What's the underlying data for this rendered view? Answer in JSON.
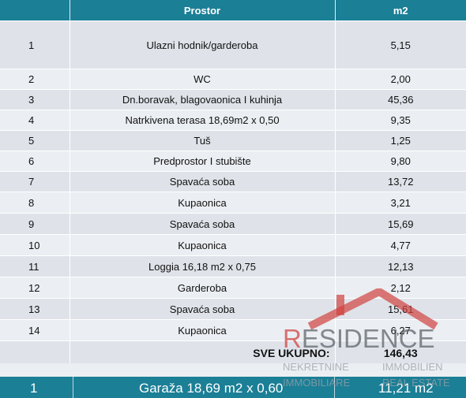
{
  "table": {
    "headers": {
      "prostor": "Prostor",
      "m2": "m2"
    },
    "rows": [
      {
        "num": "1",
        "name": "Ulazni hodnik/garderoba",
        "m2": "5,15"
      },
      {
        "num": "2",
        "name": "WC",
        "m2": "2,00"
      },
      {
        "num": "3",
        "name": "Dn.boravak, blagovaonica I kuhinja",
        "m2": "45,36"
      },
      {
        "num": "4",
        "name": "Natrkivena terasa 18,69m2 x 0,50",
        "m2": "9,35"
      },
      {
        "num": "5",
        "name": "Tuš",
        "m2": "1,25"
      },
      {
        "num": "6",
        "name": "Predprostor I stubište",
        "m2": "9,80"
      },
      {
        "num": "7",
        "name": "Spavaća soba",
        "m2": "13,72"
      },
      {
        "num": "8",
        "name": "Kupaonica",
        "m2": "3,21"
      },
      {
        "num": "9",
        "name": "Spavaća soba",
        "m2": "15,69"
      },
      {
        "num": "10",
        "name": "Kupaonica",
        "m2": "4,77"
      },
      {
        "num": "11",
        "name": "Loggia 16,18 m2 x 0,75",
        "m2": "12,13"
      },
      {
        "num": "12",
        "name": "Garderoba",
        "m2": "2,12"
      },
      {
        "num": "13",
        "name": "Spavaća soba",
        "m2": "15,61"
      },
      {
        "num": "14",
        "name": "Kupaonica",
        "m2": "6,27"
      }
    ],
    "total": {
      "label": "SVE UKUPNO:",
      "value": "146,43"
    }
  },
  "garage": {
    "num": "1",
    "name": "Garaža 18,69 m2 x 0,60",
    "m2": "11,21 m2"
  },
  "watermark": {
    "brand_first": "R",
    "brand_rest": "ESIDENCE",
    "line1_left": "NEKRETNINE",
    "line2_left": "IMMOBILIARE",
    "line1_right": "IMMOBILIEN",
    "line2_right": "REAL ESTATE"
  },
  "colors": {
    "header": "#1b7f96",
    "row_shade_a": "#dfe3e9",
    "row_shade_b": "#ebeef2",
    "logo_red": "#d0413f"
  }
}
